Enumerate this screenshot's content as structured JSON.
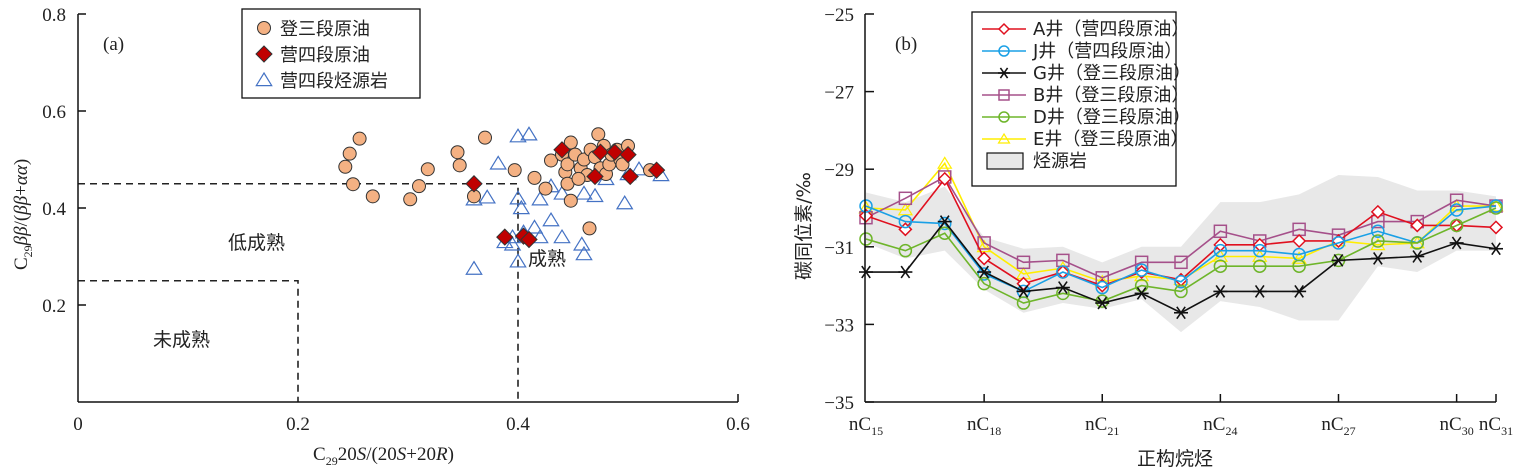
{
  "chart_data": [
    {
      "type": "scatter",
      "panel_label": "(a)",
      "xlabel": "C29 20S/(20S+20R)",
      "ylabel": "C29 ββ/(ββ+αα)",
      "xlim": [
        0,
        0.6
      ],
      "ylim": [
        0,
        0.8
      ],
      "xticks": [
        "0",
        "0.2",
        "0.4",
        "0.6"
      ],
      "yticks": [
        "0.2",
        "0.4",
        "0.6",
        "0.8"
      ],
      "grid": false,
      "legend_position": "top-center",
      "zones": [
        {
          "label": "低成熟"
        },
        {
          "label": "未成熟"
        },
        {
          "label": "成熟"
        }
      ],
      "boundaries": {
        "low_mature": {
          "x": 0.4,
          "y": 0.45
        },
        "immature": {
          "x": 0.2,
          "y": 0.25
        }
      },
      "series": [
        {
          "name": "登三段原油",
          "marker": "circle",
          "color": "#f4b183",
          "points": [
            [
              0.243,
              0.485
            ],
            [
              0.247,
              0.512
            ],
            [
              0.256,
              0.543
            ],
            [
              0.25,
              0.449
            ],
            [
              0.268,
              0.424
            ],
            [
              0.302,
              0.418
            ],
            [
              0.31,
              0.445
            ],
            [
              0.318,
              0.48
            ],
            [
              0.345,
              0.515
            ],
            [
              0.347,
              0.488
            ],
            [
              0.36,
              0.424
            ],
            [
              0.37,
              0.545
            ],
            [
              0.397,
              0.478
            ],
            [
              0.415,
              0.462
            ],
            [
              0.425,
              0.44
            ],
            [
              0.43,
              0.498
            ],
            [
              0.44,
              0.51
            ],
            [
              0.443,
              0.474
            ],
            [
              0.445,
              0.49
            ],
            [
              0.448,
              0.535
            ],
            [
              0.452,
              0.51
            ],
            [
              0.457,
              0.482
            ],
            [
              0.46,
              0.5
            ],
            [
              0.463,
              0.468
            ],
            [
              0.466,
              0.52
            ],
            [
              0.47,
              0.505
            ],
            [
              0.473,
              0.552
            ],
            [
              0.475,
              0.482
            ],
            [
              0.478,
              0.528
            ],
            [
              0.48,
              0.47
            ],
            [
              0.483,
              0.49
            ],
            [
              0.485,
              0.51
            ],
            [
              0.49,
              0.52
            ],
            [
              0.493,
              0.5
            ],
            [
              0.495,
              0.49
            ],
            [
              0.5,
              0.528
            ],
            [
              0.448,
              0.415
            ],
            [
              0.465,
              0.358
            ],
            [
              0.52,
              0.478
            ],
            [
              0.445,
              0.45
            ],
            [
              0.455,
              0.46
            ]
          ]
        },
        {
          "name": "营四段原油",
          "marker": "diamond",
          "color": "#c00000",
          "points": [
            [
              0.36,
              0.45
            ],
            [
              0.44,
              0.52
            ],
            [
              0.47,
              0.465
            ],
            [
              0.475,
              0.515
            ],
            [
              0.488,
              0.515
            ],
            [
              0.5,
              0.51
            ],
            [
              0.502,
              0.465
            ],
            [
              0.526,
              0.478
            ],
            [
              0.388,
              0.34
            ],
            [
              0.405,
              0.342
            ],
            [
              0.41,
              0.335
            ]
          ]
        },
        {
          "name": "营四段烃源岩",
          "marker": "triangle",
          "color": "#4472c4",
          "points": [
            [
              0.36,
              0.418
            ],
            [
              0.372,
              0.422
            ],
            [
              0.382,
              0.492
            ],
            [
              0.4,
              0.548
            ],
            [
              0.41,
              0.552
            ],
            [
              0.4,
              0.42
            ],
            [
              0.403,
              0.4
            ],
            [
              0.42,
              0.418
            ],
            [
              0.43,
              0.445
            ],
            [
              0.44,
              0.43
            ],
            [
              0.46,
              0.43
            ],
            [
              0.48,
              0.46
            ],
            [
              0.5,
              0.47
            ],
            [
              0.51,
              0.48
            ],
            [
              0.53,
              0.468
            ],
            [
              0.388,
              0.33
            ],
            [
              0.395,
              0.34
            ],
            [
              0.405,
              0.35
            ],
            [
              0.415,
              0.36
            ],
            [
              0.42,
              0.34
            ],
            [
              0.43,
              0.375
            ],
            [
              0.44,
              0.34
            ],
            [
              0.458,
              0.325
            ],
            [
              0.46,
              0.305
            ],
            [
              0.497,
              0.41
            ],
            [
              0.47,
              0.425
            ],
            [
              0.4,
              0.29
            ],
            [
              0.36,
              0.275
            ],
            [
              0.395,
              0.325
            ]
          ]
        }
      ]
    },
    {
      "type": "line",
      "panel_label": "(b)",
      "xlabel": "正构烷烃",
      "ylabel": "碳同位素/‰",
      "x": [
        15,
        16,
        17,
        18,
        19,
        20,
        21,
        22,
        23,
        24,
        25,
        26,
        27,
        28,
        29,
        30,
        31
      ],
      "xticks": [
        {
          "value": 15,
          "label": "nC",
          "sub": "15"
        },
        {
          "value": 18,
          "label": "nC",
          "sub": "18"
        },
        {
          "value": 21,
          "label": "nC",
          "sub": "21"
        },
        {
          "value": 24,
          "label": "nC",
          "sub": "24"
        },
        {
          "value": 27,
          "label": "nC",
          "sub": "27"
        },
        {
          "value": 30,
          "label": "nC",
          "sub": "30"
        },
        {
          "value": 31,
          "label": "nC",
          "sub": "31"
        }
      ],
      "yticks": [
        "−25",
        "−27",
        "−29",
        "−31",
        "−33",
        "−35"
      ],
      "ylim": [
        -35,
        -25
      ],
      "grid": false,
      "legend_position": "top-right",
      "series": [
        {
          "name": "A井（营四段原油）",
          "marker": "diamond",
          "color": "#e0101f",
          "values": [
            -30.2,
            -30.55,
            -29.25,
            -31.3,
            -31.95,
            -31.65,
            -32.0,
            -31.65,
            -31.85,
            -30.95,
            -30.95,
            -30.85,
            -30.85,
            -30.1,
            -30.45,
            -30.45,
            -30.5
          ]
        },
        {
          "name": "J井（营四段原油）",
          "marker": "circle",
          "color": "#1aa0e6",
          "values": [
            -29.95,
            -30.35,
            -30.4,
            -31.7,
            -32.15,
            -31.65,
            -32.05,
            -31.6,
            -31.9,
            -31.1,
            -31.1,
            -31.2,
            -30.9,
            -30.6,
            -30.9,
            -30.05,
            -29.95
          ]
        },
        {
          "name": "G井（登三段原油）",
          "marker": "star",
          "color": "#111111",
          "values": [
            -31.65,
            -31.65,
            -30.35,
            -31.65,
            -32.15,
            -32.05,
            -32.45,
            -32.2,
            -32.7,
            -32.15,
            -32.15,
            -32.15,
            -31.35,
            -31.3,
            -31.25,
            -30.9,
            -31.05
          ]
        },
        {
          "name": "B井（登三段原油）",
          "marker": "square",
          "color": "#a5508a",
          "values": [
            -30.25,
            -29.75,
            -29.2,
            -30.9,
            -31.4,
            -31.35,
            -31.8,
            -31.4,
            -31.4,
            -30.6,
            -30.85,
            -30.55,
            -30.7,
            -30.35,
            -30.35,
            -29.8,
            -29.95
          ]
        },
        {
          "name": "D井（登三段原油）",
          "marker": "circle",
          "color": "#6eb52a",
          "values": [
            -30.8,
            -31.1,
            -30.65,
            -31.95,
            -32.45,
            -32.2,
            -32.4,
            -32.0,
            -32.15,
            -31.5,
            -31.5,
            -31.5,
            -31.35,
            -30.85,
            -30.9,
            -30.45,
            -30.0
          ]
        },
        {
          "name": "E井（登三段原油）",
          "marker": "triangle",
          "color": "#ffee00",
          "values": [
            -30.0,
            -30.05,
            -28.85,
            -31.0,
            -31.7,
            -31.55,
            -31.9,
            -31.75,
            -31.85,
            -31.25,
            -31.25,
            -31.3,
            -30.85,
            -30.95,
            -30.9,
            -29.95,
            -29.95
          ]
        }
      ],
      "band": {
        "name": "烃源岩",
        "color": "#e8e8e8",
        "upper": [
          -29.6,
          -29.85,
          -29.45,
          -30.75,
          -31.05,
          -31.0,
          -31.4,
          -31.0,
          -31.0,
          -29.85,
          -29.85,
          -29.65,
          -29.15,
          -29.2,
          -29.55,
          -29.55,
          -29.7
        ],
        "lower": [
          -30.9,
          -31.3,
          -31.1,
          -32.1,
          -32.7,
          -32.45,
          -32.6,
          -32.35,
          -33.2,
          -32.4,
          -32.55,
          -32.9,
          -32.9,
          -31.5,
          -31.65,
          -31.1,
          -31.1
        ]
      }
    }
  ]
}
